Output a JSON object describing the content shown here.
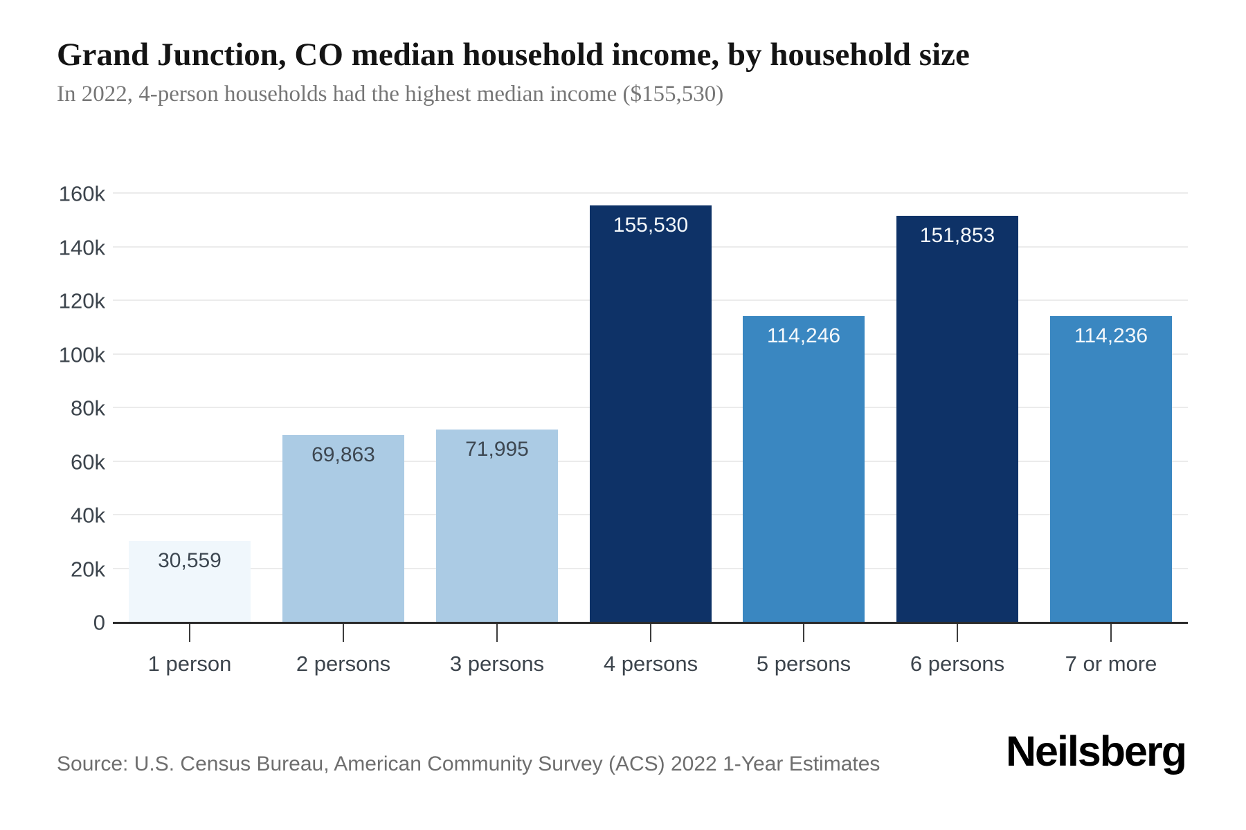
{
  "header": {
    "title": "Grand Junction, CO median household income, by household size",
    "subtitle": "In 2022, 4-person households had the highest median income ($155,530)"
  },
  "chart_data": {
    "type": "bar",
    "title": "Grand Junction, CO median household income, by household size",
    "subtitle": "In 2022, 4-person households had the highest median income ($155,530)",
    "categories": [
      "1 person",
      "2 persons",
      "3 persons",
      "4 persons",
      "5 persons",
      "6 persons",
      "7 or more"
    ],
    "values": [
      30559,
      69863,
      71995,
      155530,
      114246,
      151853,
      114236
    ],
    "value_labels": [
      "30,559",
      "69,863",
      "71,995",
      "155,530",
      "114,246",
      "151,853",
      "114,236"
    ],
    "bar_colors": [
      "#f0f7fc",
      "#abcbe4",
      "#abcbe4",
      "#0e3267",
      "#3a87c1",
      "#0e3267",
      "#3a87c1"
    ],
    "value_label_colors": [
      "#3d4751",
      "#3d4751",
      "#3d4751",
      "#f4f8fb",
      "#f4f8fb",
      "#f4f8fb",
      "#f4f8fb"
    ],
    "xlabel": "",
    "ylabel": "",
    "ylim": [
      0,
      160000
    ],
    "grid": true,
    "legend": false,
    "y_ticks": [
      {
        "label": "0",
        "value": 0
      },
      {
        "label": "20k",
        "value": 20000
      },
      {
        "label": "40k",
        "value": 40000
      },
      {
        "label": "60k",
        "value": 60000
      },
      {
        "label": "80k",
        "value": 80000
      },
      {
        "label": "100k",
        "value": 100000
      },
      {
        "label": "120k",
        "value": 120000
      },
      {
        "label": "140k",
        "value": 140000
      },
      {
        "label": "160k",
        "value": 160000
      }
    ],
    "axis_colors": {
      "gridline": "#ebebeb",
      "baseline": "#2b2b2b",
      "tick": "#3c3c3c",
      "tick_label": "#3c444c"
    }
  },
  "footer": {
    "source": "Source: U.S. Census Bureau, American Community Survey (ACS) 2022 1-Year Estimates",
    "logo": "Neilsberg"
  }
}
